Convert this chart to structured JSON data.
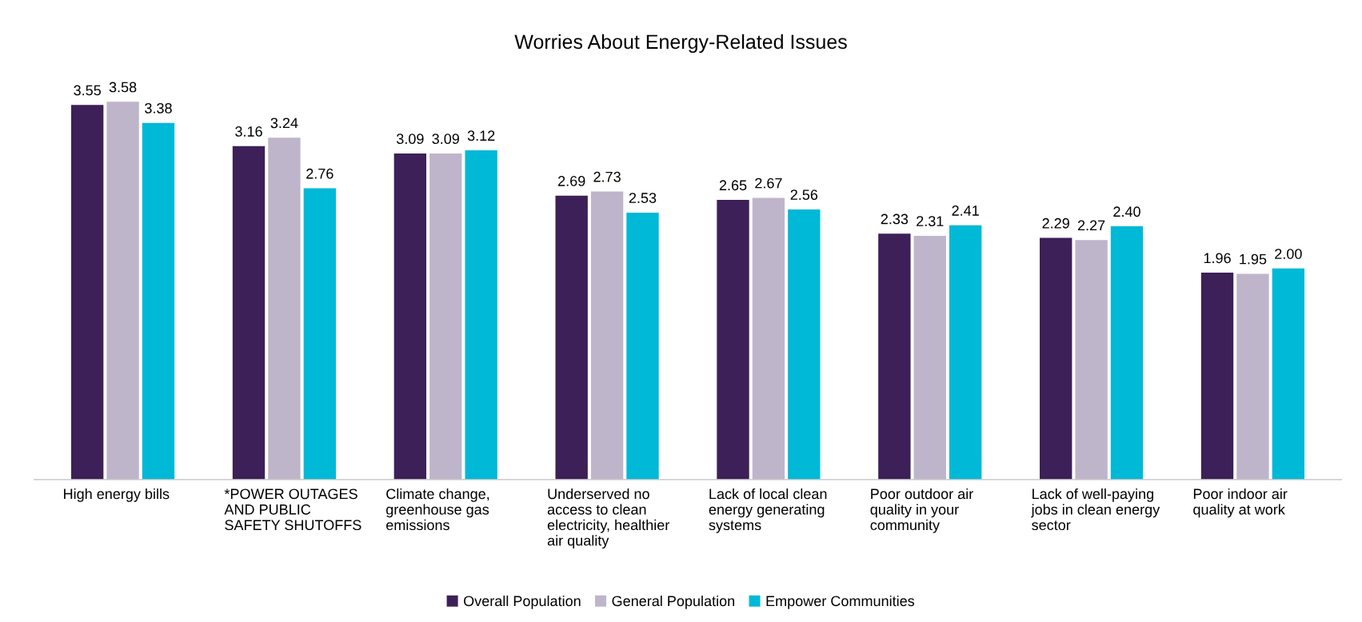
{
  "chart_data": {
    "type": "bar",
    "title": "Worries About Energy-Related Issues",
    "categories": [
      "High energy bills",
      "*POWER OUTAGES\nAND PUBLIC\nSAFETY SHUTOFFS",
      "Climate change,\ngreenhouse gas\nemissions",
      "Underserved no\naccess to clean\nelectricity, healthier\nair quality",
      "Lack of local clean\nenergy generating\nsystems",
      "Poor outdoor air\nquality in your\ncommunity",
      "Lack of well-paying\njobs in clean energy\nsector",
      "Poor indoor air\nquality at work"
    ],
    "series": [
      {
        "name": "Overall Population",
        "color": "#3c2057",
        "values": [
          3.55,
          3.16,
          3.09,
          2.69,
          2.65,
          2.33,
          2.29,
          1.96
        ],
        "value_labels": [
          "3.55",
          "3.16",
          "3.09",
          "2.69",
          "2.65",
          "2.33",
          "2.29",
          "1.96"
        ]
      },
      {
        "name": "General Population",
        "color": "#bfb5cb",
        "values": [
          3.58,
          3.24,
          3.09,
          2.73,
          2.67,
          2.31,
          2.27,
          1.95
        ],
        "value_labels": [
          "3.58",
          "3.24",
          "3.09",
          "2.73",
          "2.67",
          "2.31",
          "2.27",
          "1.95"
        ]
      },
      {
        "name": "Empower Communities",
        "color": "#00b9d6",
        "values": [
          3.38,
          2.76,
          3.12,
          2.53,
          2.56,
          2.41,
          2.4,
          2.0
        ],
        "value_labels": [
          "3.38",
          "2.76",
          "3.12",
          "2.53",
          "2.56",
          "2.41",
          "2.40",
          "2.00"
        ]
      }
    ],
    "tick_labels": "x",
    "grid": false,
    "legend": "bottom"
  }
}
